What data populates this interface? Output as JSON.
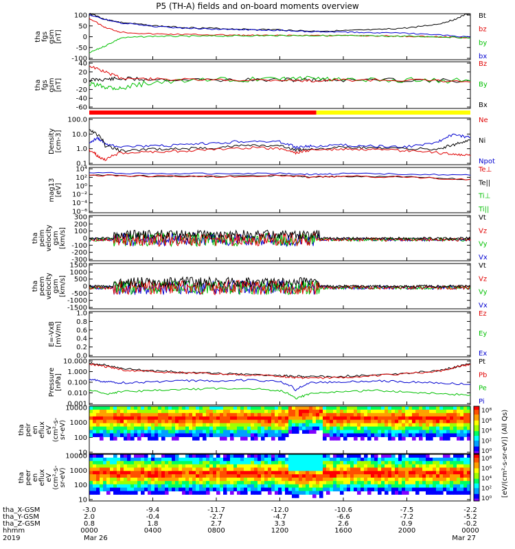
{
  "title": "P5 (TH-A) fields and on-board moments overview",
  "panels": [
    {
      "id": "fgs",
      "ylabel": [
        "tha",
        "fgs",
        "gsm",
        "[nT]"
      ],
      "ticks": [
        "100",
        "50",
        "0",
        "-50",
        "-100"
      ],
      "legend": [
        {
          "t": "Bt",
          "c": "#000000"
        },
        {
          "t": "bz",
          "c": "#e00000"
        },
        {
          "t": "by",
          "c": "#00c000"
        },
        {
          "t": "bx",
          "c": "#0000d0"
        }
      ]
    },
    {
      "id": "fgs_dsl",
      "ylabel": [
        "tha",
        "fgs",
        "gsm",
        "[nT]"
      ],
      "ticks": [
        "40",
        "20",
        "0",
        "-20",
        "-40",
        "-60"
      ],
      "legend": [
        {
          "t": "Bz",
          "c": "#e00000"
        },
        {
          "t": "By",
          "c": "#00c000"
        },
        {
          "t": "Bx",
          "c": "#000000"
        }
      ]
    },
    {
      "id": "density",
      "ylabel": [
        "Density",
        "[cm-3]"
      ],
      "ticks": [
        "100.0",
        "10.0",
        "1.0",
        "0.1"
      ],
      "legend": [
        {
          "t": "Ne",
          "c": "#e00000"
        },
        {
          "t": "Ni",
          "c": "#000000"
        },
        {
          "t": "Npot",
          "c": "#0000d0"
        }
      ]
    },
    {
      "id": "temp",
      "ylabel": [
        "mag13",
        "[eV]"
      ],
      "ticks": [
        "10⁴",
        "10²",
        "10⁰",
        "10⁻²",
        "10⁻⁴",
        "10⁻⁶"
      ],
      "legend": [
        {
          "t": "Te⊥",
          "c": "#e00000"
        },
        {
          "t": "Te||",
          "c": "#000000"
        },
        {
          "t": "Ti⊥",
          "c": "#00c000"
        },
        {
          "t": "Ti||",
          "c": "#00c000"
        }
      ]
    },
    {
      "id": "peim",
      "ylabel": [
        "tha",
        "peim",
        "velocity",
        "gsm",
        "[km/s]"
      ],
      "ticks": [
        "300",
        "200",
        "100",
        "0",
        "-100",
        "-200",
        "-300"
      ],
      "legend": [
        {
          "t": "Vt",
          "c": "#000000"
        },
        {
          "t": "Vz",
          "c": "#e00000"
        },
        {
          "t": "Vy",
          "c": "#00c000"
        },
        {
          "t": "Vx",
          "c": "#0000d0"
        }
      ]
    },
    {
      "id": "peem",
      "ylabel": [
        "tha",
        "peem",
        "velocity",
        "gsm",
        "[km/s]"
      ],
      "ticks": [
        "1500",
        "1000",
        "500",
        "0",
        "-500",
        "-1000",
        "-1500"
      ],
      "legend": [
        {
          "t": "Vt",
          "c": "#000000"
        },
        {
          "t": "Vz",
          "c": "#e00000"
        },
        {
          "t": "Vy",
          "c": "#00c000"
        },
        {
          "t": "Vx",
          "c": "#0000d0"
        }
      ]
    },
    {
      "id": "efield",
      "ylabel": [
        "E=-VxB",
        "[mV/m]"
      ],
      "ticks": [
        "1.0",
        "0.8",
        "0.6",
        "0.4",
        "0.2",
        "0.0"
      ],
      "legend": [
        {
          "t": "Ez",
          "c": "#e00000"
        },
        {
          "t": "Ey",
          "c": "#00c000"
        },
        {
          "t": "Ex",
          "c": "#0000d0"
        }
      ]
    },
    {
      "id": "pressure",
      "ylabel": [
        "Pressure",
        "[nPa]"
      ],
      "ticks": [
        "10.000",
        "1.000",
        "0.100",
        "0.010",
        "0.001"
      ],
      "legend": [
        {
          "t": "Pt",
          "c": "#000000"
        },
        {
          "t": "Pb",
          "c": "#e00000"
        },
        {
          "t": "Pe",
          "c": "#00c000"
        },
        {
          "t": "Pi",
          "c": "#0000d0"
        }
      ]
    },
    {
      "id": "peir",
      "ylabel": [
        "tha",
        "peir",
        "en",
        "eflux",
        "eV",
        "(cm²-s-",
        "sr-eV)"
      ],
      "ticks": [
        "10000",
        "1000",
        "100",
        "10"
      ]
    },
    {
      "id": "peer",
      "ylabel": [
        "tha",
        "peer",
        "en",
        "eflux",
        "eV",
        "(cm²-s-",
        "sr-eV)"
      ],
      "ticks": [
        "10000",
        "1000",
        "100",
        "10"
      ]
    }
  ],
  "colorbar": {
    "label": "[eV/(cm²-s-sr-eV)] (All Qs)",
    "ticks_ion": [
      "10⁸",
      "10⁶",
      "10⁴",
      "10²",
      "10⁰"
    ],
    "ticks_ele": [
      "10⁸",
      "10⁶",
      "10⁴",
      "10²",
      "10⁰"
    ]
  },
  "xaxis": {
    "ticks": [
      "0000",
      "0400",
      "0800",
      "1200",
      "1600",
      "2000",
      "0000"
    ],
    "rows": [
      {
        "label": "tha_X-GSM",
        "vals": [
          "-3.0",
          "-9.4",
          "-11.7",
          "-12.0",
          "-10.6",
          "-7.5",
          "-2.2"
        ]
      },
      {
        "label": "tha_Y-GSM",
        "vals": [
          "2.0",
          "-0.4",
          "-2.7",
          "-4.7",
          "-6.6",
          "-7.2",
          "-5.2"
        ]
      },
      {
        "label": "tha_Z-GSM",
        "vals": [
          "0.8",
          "1.8",
          "2.7",
          "3.3",
          "2.6",
          "0.9",
          "-0.2"
        ]
      },
      {
        "label": "hhmm",
        "vals": [
          "0000",
          "0400",
          "0800",
          "1200",
          "1600",
          "2000",
          "0000"
        ]
      }
    ],
    "year": "2019",
    "date_start": "Mar 26",
    "date_end": "Mar 27"
  },
  "chart_data": {
    "type": "line",
    "xlim": [
      0,
      24
    ],
    "x_unit": "hours UT, 2019-03-26",
    "status_bar": [
      {
        "from": 0,
        "to": 14.3,
        "color": "#ff0000"
      },
      {
        "from": 14.3,
        "to": 24,
        "color": "#ffff00"
      }
    ],
    "series": [
      {
        "name": "Bt",
        "x": [
          0,
          1,
          2,
          4,
          6,
          8,
          10,
          12,
          14,
          16,
          18,
          20,
          22,
          23,
          24
        ],
        "y": [
          105,
          75,
          62,
          48,
          40,
          36,
          32,
          30,
          24,
          26,
          30,
          38,
          55,
          75,
          105
        ]
      },
      {
        "name": "bz",
        "x": [
          0,
          1,
          2,
          4,
          6,
          8,
          10,
          12,
          14,
          16,
          18,
          20,
          22,
          24
        ],
        "y": [
          80,
          40,
          20,
          12,
          10,
          8,
          6,
          5,
          6,
          5,
          4,
          2,
          0,
          -5
        ]
      },
      {
        "name": "by",
        "x": [
          0,
          1,
          2,
          4,
          6,
          8,
          10,
          12,
          14,
          16,
          18,
          20,
          22,
          24
        ],
        "y": [
          -70,
          -40,
          -5,
          2,
          2,
          3,
          4,
          5,
          5,
          4,
          3,
          2,
          0,
          -5
        ]
      },
      {
        "name": "bx",
        "x": [
          0,
          1,
          2,
          4,
          6,
          8,
          10,
          12,
          14,
          16,
          18,
          20,
          22,
          24
        ],
        "y": [
          95,
          75,
          60,
          45,
          37,
          33,
          30,
          28,
          22,
          20,
          18,
          15,
          8,
          -2
        ]
      },
      {
        "name": "Ne",
        "x": [
          0,
          0.5,
          1,
          2,
          4,
          6,
          8,
          10,
          12,
          13,
          14,
          16,
          18,
          20,
          22,
          23,
          24
        ],
        "y": [
          0.8,
          0.3,
          0.15,
          0.5,
          0.6,
          0.7,
          0.9,
          1.2,
          1.0,
          0.5,
          0.8,
          0.9,
          0.8,
          0.7,
          0.5,
          0.4,
          0.3
        ]
      },
      {
        "name": "Ni",
        "x": [
          0,
          0.5,
          1,
          2,
          4,
          6,
          8,
          10,
          12,
          13,
          14,
          16,
          18,
          20,
          22,
          23,
          24
        ],
        "y": [
          20,
          10,
          1.5,
          0.7,
          0.9,
          1.0,
          1.2,
          1.8,
          1.5,
          0.8,
          1.0,
          1.2,
          1.1,
          1.0,
          0.9,
          2,
          4
        ]
      },
      {
        "name": "Npot",
        "x": [
          0,
          0.5,
          1,
          2,
          4,
          6,
          8,
          10,
          12,
          13,
          14,
          16,
          18,
          20,
          22,
          23,
          24
        ],
        "y": [
          2,
          6,
          2.0,
          1.5,
          1.5,
          1.8,
          2.5,
          3.5,
          3.0,
          1.2,
          1.5,
          1.8,
          1.5,
          1.3,
          3,
          10,
          6
        ]
      },
      {
        "name": "Pt",
        "x": [
          0,
          1,
          2,
          4,
          6,
          8,
          10,
          12,
          13,
          14,
          16,
          18,
          20,
          22,
          23,
          24
        ],
        "y": [
          6,
          4,
          2,
          1.2,
          0.9,
          0.7,
          0.55,
          0.45,
          0.4,
          0.35,
          0.4,
          0.5,
          0.7,
          1.2,
          2.5,
          5
        ]
      },
      {
        "name": "Pb",
        "x": [
          0,
          1,
          2,
          4,
          6,
          8,
          10,
          12,
          13,
          14,
          16,
          18,
          20,
          22,
          23,
          24
        ],
        "y": [
          5,
          3,
          1.5,
          1.0,
          0.8,
          0.6,
          0.5,
          0.4,
          0.3,
          0.25,
          0.3,
          0.45,
          0.65,
          1.1,
          2.3,
          4.5
        ]
      },
      {
        "name": "Pe",
        "x": [
          0,
          1,
          2,
          4,
          6,
          8,
          10,
          12,
          13,
          14,
          16,
          18,
          20,
          22,
          24
        ],
        "y": [
          0.02,
          0.01,
          0.015,
          0.02,
          0.025,
          0.03,
          0.03,
          0.02,
          0.003,
          0.01,
          0.015,
          0.02,
          0.015,
          0.01,
          0.008
        ]
      },
      {
        "name": "Pi",
        "x": [
          0,
          1,
          2,
          4,
          6,
          8,
          10,
          12,
          13,
          14,
          16,
          18,
          20,
          22,
          24
        ],
        "y": [
          0.2,
          0.12,
          0.1,
          0.12,
          0.15,
          0.15,
          0.18,
          0.12,
          0.02,
          0.1,
          0.12,
          0.15,
          0.12,
          0.1,
          0.07
        ]
      }
    ]
  }
}
